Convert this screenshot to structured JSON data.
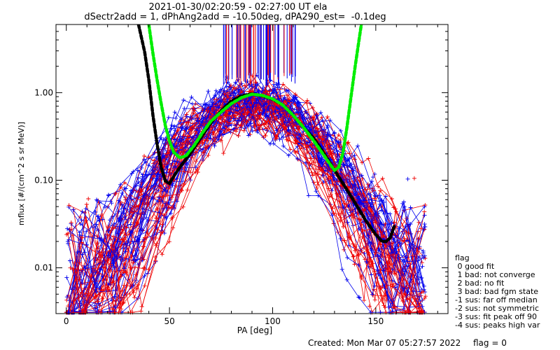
{
  "chart_data": {
    "type": "line",
    "title": "2021-01-30/02:20:59 - 02:27:00 UT ela",
    "subtitle": "dSectr2add = 1, dPhAng2add = -10.50deg, dPA290_est=  -0.1deg",
    "xlabel": "PA [deg]",
    "ylabel": "mflux [#/(cm^2 s sr MeV)]",
    "xlim": [
      -5,
      185
    ],
    "ylim": [
      0.003,
      6
    ],
    "yscale": "log",
    "xticks": [
      "0",
      "50",
      "100",
      "150"
    ],
    "yticks": [
      "0.01",
      "0.10",
      "1.00"
    ],
    "grid": false,
    "series": [
      {
        "name": "",
        "color": "#000000",
        "style": "thick dashed",
        "x": [
          35,
          38,
          40,
          42,
          44,
          46,
          48,
          50,
          52,
          55,
          60,
          65,
          70,
          75,
          80,
          85,
          90,
          95,
          100,
          105,
          110,
          115,
          120,
          125,
          130,
          135,
          140,
          145,
          150,
          153,
          155,
          157,
          159
        ],
        "y": [
          6.0,
          2.9,
          1.4,
          0.55,
          0.26,
          0.14,
          0.098,
          0.092,
          0.11,
          0.14,
          0.2,
          0.3,
          0.45,
          0.62,
          0.8,
          0.92,
          0.97,
          0.92,
          0.84,
          0.72,
          0.55,
          0.4,
          0.3,
          0.2,
          0.13,
          0.085,
          0.055,
          0.035,
          0.024,
          0.02,
          0.02,
          0.022,
          0.03
        ]
      },
      {
        "name": "",
        "color": "#00ee00",
        "style": "thick dashed",
        "x": [
          40,
          42,
          44,
          46,
          48,
          50,
          52,
          55,
          58,
          62,
          66,
          70,
          75,
          80,
          85,
          90,
          95,
          100,
          105,
          110,
          115,
          120,
          125,
          128,
          130,
          132,
          134,
          136,
          138,
          140,
          142,
          143
        ],
        "y": [
          6.0,
          2.8,
          1.4,
          0.75,
          0.42,
          0.28,
          0.21,
          0.18,
          0.19,
          0.25,
          0.35,
          0.47,
          0.6,
          0.75,
          0.88,
          0.96,
          0.93,
          0.85,
          0.72,
          0.55,
          0.4,
          0.28,
          0.19,
          0.15,
          0.13,
          0.14,
          0.2,
          0.4,
          0.9,
          2.0,
          4.2,
          6.0
        ]
      }
    ],
    "legend": {
      "position": "right",
      "title": "flag",
      "entries": [
        " 0 good fit",
        " 1 bad: not converge",
        " 2 bad: no fit",
        " 3 bad: bad fgm state",
        "-1 sus: far off median",
        "-2 sus: not symmetric",
        "-3 sus: fit peak off 90",
        "-4 sus: peaks high var"
      ]
    }
  },
  "footer": {
    "created": "Created: Mon Mar 07 05:27:57 2022",
    "flag": "flag = 0"
  },
  "colors": {
    "red_traces": "#ee0000",
    "blue_traces": "#0000ee",
    "black_fit": "#000000",
    "green_fit": "#00ee00"
  }
}
